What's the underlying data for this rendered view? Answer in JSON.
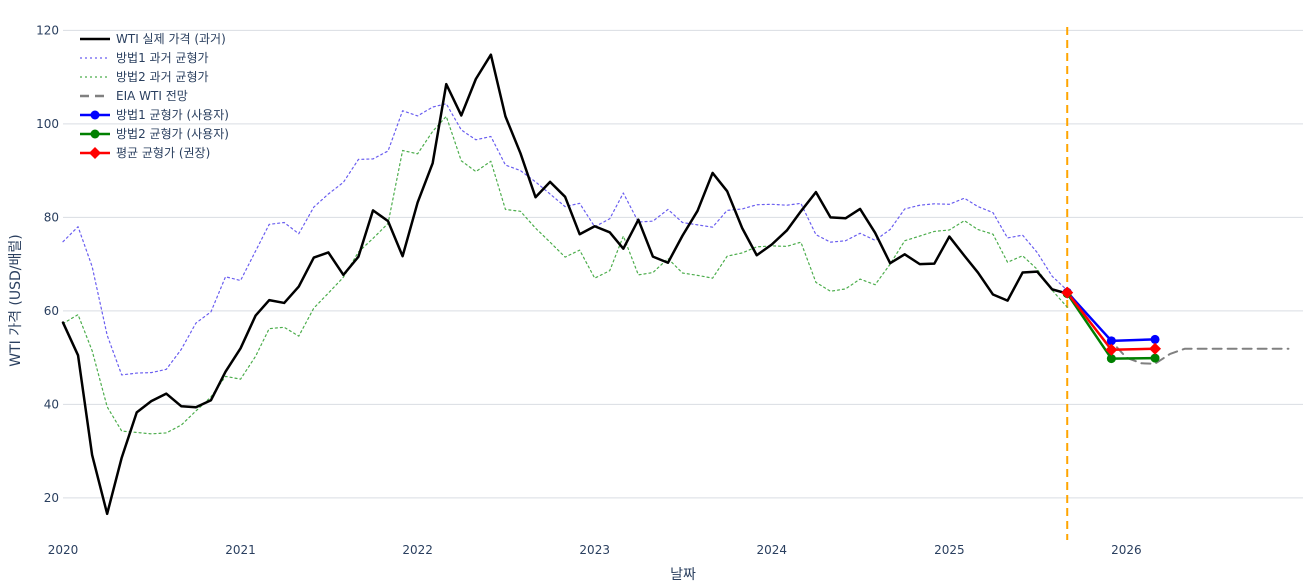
{
  "chart_data": {
    "type": "line",
    "xlabel": "날짜",
    "ylabel": "WTI 가격 (USD/배럴)",
    "xlim": [
      "2020-01-01",
      "2026-12-31"
    ],
    "ylim": [
      11,
      122
    ],
    "x_ticks": [
      "2020",
      "2021",
      "2022",
      "2023",
      "2024",
      "2025",
      "2026"
    ],
    "y_ticks": [
      20,
      40,
      60,
      80,
      100,
      120
    ],
    "grid": true,
    "legend_position": "top-left",
    "forecast_marker": {
      "date": "2025-09-01",
      "color": "#FFA500",
      "style": "dashed"
    },
    "series": [
      {
        "name": "WTI 실제 가격 (과거)",
        "color": "#000000",
        "style": "solid",
        "points": [
          [
            "2020-01-01",
            57.5
          ],
          [
            "2020-02-01",
            50.5
          ],
          [
            "2020-03-01",
            29.2
          ],
          [
            "2020-04-01",
            16.6
          ],
          [
            "2020-05-01",
            28.6
          ],
          [
            "2020-06-01",
            38.3
          ],
          [
            "2020-07-01",
            40.7
          ],
          [
            "2020-08-01",
            42.3
          ],
          [
            "2020-09-01",
            39.6
          ],
          [
            "2020-10-01",
            39.4
          ],
          [
            "2020-11-01",
            40.9
          ],
          [
            "2020-12-01",
            47.0
          ],
          [
            "2021-01-01",
            52.0
          ],
          [
            "2021-02-01",
            59.0
          ],
          [
            "2021-03-01",
            62.3
          ],
          [
            "2021-04-01",
            61.7
          ],
          [
            "2021-05-01",
            65.2
          ],
          [
            "2021-06-01",
            71.4
          ],
          [
            "2021-07-01",
            72.5
          ],
          [
            "2021-08-01",
            67.7
          ],
          [
            "2021-09-01",
            71.6
          ],
          [
            "2021-10-01",
            81.5
          ],
          [
            "2021-11-01",
            79.2
          ],
          [
            "2021-12-01",
            71.7
          ],
          [
            "2022-01-01",
            83.2
          ],
          [
            "2022-02-01",
            91.6
          ],
          [
            "2022-03-01",
            108.5
          ],
          [
            "2022-04-01",
            101.8
          ],
          [
            "2022-05-01",
            109.6
          ],
          [
            "2022-06-01",
            114.8
          ],
          [
            "2022-07-01",
            101.6
          ],
          [
            "2022-08-01",
            93.7
          ],
          [
            "2022-09-01",
            84.3
          ],
          [
            "2022-10-01",
            87.6
          ],
          [
            "2022-11-01",
            84.4
          ],
          [
            "2022-12-01",
            76.4
          ],
          [
            "2023-01-01",
            78.1
          ],
          [
            "2023-02-01",
            76.8
          ],
          [
            "2023-03-01",
            73.3
          ],
          [
            "2023-04-01",
            79.5
          ],
          [
            "2023-05-01",
            71.6
          ],
          [
            "2023-06-01",
            70.3
          ],
          [
            "2023-07-01",
            76.1
          ],
          [
            "2023-08-01",
            81.4
          ],
          [
            "2023-09-01",
            89.5
          ],
          [
            "2023-10-01",
            85.6
          ],
          [
            "2023-11-01",
            77.7
          ],
          [
            "2023-12-01",
            71.9
          ],
          [
            "2024-01-01",
            74.2
          ],
          [
            "2024-02-01",
            77.2
          ],
          [
            "2024-03-01",
            81.3
          ],
          [
            "2024-04-01",
            85.4
          ],
          [
            "2024-05-01",
            80.0
          ],
          [
            "2024-06-01",
            79.8
          ],
          [
            "2024-07-01",
            81.8
          ],
          [
            "2024-08-01",
            76.7
          ],
          [
            "2024-09-01",
            70.2
          ],
          [
            "2024-10-01",
            72.1
          ],
          [
            "2024-11-01",
            70.0
          ],
          [
            "2024-12-01",
            70.1
          ],
          [
            "2025-01-01",
            75.9
          ],
          [
            "2025-02-01",
            71.8
          ],
          [
            "2025-03-01",
            68.2
          ],
          [
            "2025-04-01",
            63.5
          ],
          [
            "2025-05-01",
            62.2
          ],
          [
            "2025-06-01",
            68.2
          ],
          [
            "2025-07-01",
            68.4
          ],
          [
            "2025-08-01",
            64.6
          ],
          [
            "2025-09-01",
            63.7
          ]
        ]
      },
      {
        "name": "방법1 과거 균형가",
        "color": "#6a5ef0",
        "style": "dotted",
        "points": [
          [
            "2020-01-01",
            74.8
          ],
          [
            "2020-02-01",
            78.0
          ],
          [
            "2020-03-01",
            69.5
          ],
          [
            "2020-04-01",
            54.8
          ],
          [
            "2020-05-01",
            46.3
          ],
          [
            "2020-06-01",
            46.7
          ],
          [
            "2020-07-01",
            46.8
          ],
          [
            "2020-08-01",
            47.5
          ],
          [
            "2020-09-01",
            51.8
          ],
          [
            "2020-10-01",
            57.4
          ],
          [
            "2020-11-01",
            59.8
          ],
          [
            "2020-12-01",
            67.3
          ],
          [
            "2021-01-01",
            66.5
          ],
          [
            "2021-02-01",
            72.8
          ],
          [
            "2021-03-01",
            78.5
          ],
          [
            "2021-04-01",
            78.9
          ],
          [
            "2021-05-01",
            76.5
          ],
          [
            "2021-06-01",
            82.2
          ],
          [
            "2021-07-01",
            85.0
          ],
          [
            "2021-08-01",
            87.5
          ],
          [
            "2021-09-01",
            92.4
          ],
          [
            "2021-10-01",
            92.5
          ],
          [
            "2021-11-01",
            94.2
          ],
          [
            "2021-12-01",
            102.8
          ],
          [
            "2022-01-01",
            101.7
          ],
          [
            "2022-02-01",
            103.6
          ],
          [
            "2022-03-01",
            104.3
          ],
          [
            "2022-04-01",
            98.7
          ],
          [
            "2022-05-01",
            96.6
          ],
          [
            "2022-06-01",
            97.3
          ],
          [
            "2022-07-01",
            91.2
          ],
          [
            "2022-08-01",
            90.0
          ],
          [
            "2022-09-01",
            87.6
          ],
          [
            "2022-10-01",
            85.0
          ],
          [
            "2022-11-01",
            82.3
          ],
          [
            "2022-12-01",
            83.0
          ],
          [
            "2023-01-01",
            78.0
          ],
          [
            "2023-02-01",
            79.7
          ],
          [
            "2023-03-01",
            85.2
          ],
          [
            "2023-04-01",
            79.0
          ],
          [
            "2023-05-01",
            79.2
          ],
          [
            "2023-06-01",
            81.7
          ],
          [
            "2023-07-01",
            78.9
          ],
          [
            "2023-08-01",
            78.4
          ],
          [
            "2023-09-01",
            77.9
          ],
          [
            "2023-10-01",
            81.5
          ],
          [
            "2023-11-01",
            81.8
          ],
          [
            "2023-12-01",
            82.7
          ],
          [
            "2024-01-01",
            82.8
          ],
          [
            "2024-02-01",
            82.6
          ],
          [
            "2024-03-01",
            83.0
          ],
          [
            "2024-04-01",
            76.3
          ],
          [
            "2024-05-01",
            74.7
          ],
          [
            "2024-06-01",
            75.0
          ],
          [
            "2024-07-01",
            76.6
          ],
          [
            "2024-08-01",
            75.1
          ],
          [
            "2024-09-01",
            77.4
          ],
          [
            "2024-10-01",
            81.8
          ],
          [
            "2024-11-01",
            82.6
          ],
          [
            "2024-12-01",
            82.9
          ],
          [
            "2025-01-01",
            82.8
          ],
          [
            "2025-02-01",
            84.1
          ],
          [
            "2025-03-01",
            82.3
          ],
          [
            "2025-04-01",
            81.0
          ],
          [
            "2025-05-01",
            75.6
          ],
          [
            "2025-06-01",
            76.2
          ],
          [
            "2025-07-01",
            72.5
          ],
          [
            "2025-08-01",
            67.4
          ],
          [
            "2025-09-01",
            64.4
          ]
        ]
      },
      {
        "name": "방법2 과거 균형가",
        "color": "#4cad4c",
        "style": "dotted",
        "points": [
          [
            "2020-01-01",
            57.3
          ],
          [
            "2020-02-01",
            59.2
          ],
          [
            "2020-03-01",
            51.5
          ],
          [
            "2020-04-01",
            39.5
          ],
          [
            "2020-05-01",
            34.3
          ],
          [
            "2020-06-01",
            34.0
          ],
          [
            "2020-07-01",
            33.7
          ],
          [
            "2020-08-01",
            33.9
          ],
          [
            "2020-09-01",
            35.6
          ],
          [
            "2020-10-01",
            38.6
          ],
          [
            "2020-11-01",
            41.6
          ],
          [
            "2020-12-01",
            46.0
          ],
          [
            "2021-01-01",
            45.4
          ],
          [
            "2021-02-01",
            50.3
          ],
          [
            "2021-03-01",
            56.2
          ],
          [
            "2021-04-01",
            56.5
          ],
          [
            "2021-05-01",
            54.6
          ],
          [
            "2021-06-01",
            60.6
          ],
          [
            "2021-07-01",
            63.8
          ],
          [
            "2021-08-01",
            67.2
          ],
          [
            "2021-09-01",
            72.6
          ],
          [
            "2021-10-01",
            75.5
          ],
          [
            "2021-11-01",
            78.7
          ],
          [
            "2021-12-01",
            94.3
          ],
          [
            "2022-01-01",
            93.6
          ],
          [
            "2022-02-01",
            98.4
          ],
          [
            "2022-03-01",
            101.6
          ],
          [
            "2022-04-01",
            92.1
          ],
          [
            "2022-05-01",
            89.8
          ],
          [
            "2022-06-01",
            92.0
          ],
          [
            "2022-07-01",
            81.7
          ],
          [
            "2022-08-01",
            81.3
          ],
          [
            "2022-09-01",
            77.7
          ],
          [
            "2022-10-01",
            74.7
          ],
          [
            "2022-11-01",
            71.5
          ],
          [
            "2022-12-01",
            73.0
          ],
          [
            "2023-01-01",
            67.0
          ],
          [
            "2023-02-01",
            68.6
          ],
          [
            "2023-03-01",
            76.0
          ],
          [
            "2023-04-01",
            67.7
          ],
          [
            "2023-05-01",
            68.2
          ],
          [
            "2023-06-01",
            71.2
          ],
          [
            "2023-07-01",
            68.1
          ],
          [
            "2023-08-01",
            67.6
          ],
          [
            "2023-09-01",
            67.0
          ],
          [
            "2023-10-01",
            71.7
          ],
          [
            "2023-11-01",
            72.4
          ],
          [
            "2023-12-01",
            73.7
          ],
          [
            "2024-01-01",
            73.9
          ],
          [
            "2024-02-01",
            73.8
          ],
          [
            "2024-03-01",
            74.7
          ],
          [
            "2024-04-01",
            66.1
          ],
          [
            "2024-05-01",
            64.2
          ],
          [
            "2024-06-01",
            64.7
          ],
          [
            "2024-07-01",
            66.8
          ],
          [
            "2024-08-01",
            65.6
          ],
          [
            "2024-09-01",
            70.0
          ],
          [
            "2024-10-01",
            75.0
          ],
          [
            "2024-11-01",
            76.0
          ],
          [
            "2024-12-01",
            77.0
          ],
          [
            "2025-01-01",
            77.3
          ],
          [
            "2025-02-01",
            79.3
          ],
          [
            "2025-03-01",
            77.4
          ],
          [
            "2025-04-01",
            76.4
          ],
          [
            "2025-05-01",
            70.4
          ],
          [
            "2025-06-01",
            71.8
          ],
          [
            "2025-07-01",
            68.9
          ],
          [
            "2025-08-01",
            64.4
          ],
          [
            "2025-09-01",
            60.8
          ]
        ]
      },
      {
        "name": "EIA WTI 전망",
        "color": "#808080",
        "style": "dashed",
        "points": [
          [
            "2025-09-01",
            64.2
          ],
          [
            "2025-10-01",
            60.5
          ],
          [
            "2025-11-01",
            57.0
          ],
          [
            "2025-12-01",
            53.5
          ],
          [
            "2026-01-01",
            50.0
          ],
          [
            "2026-02-01",
            48.8
          ],
          [
            "2026-03-01",
            48.7
          ],
          [
            "2026-04-01",
            50.8
          ],
          [
            "2026-05-01",
            51.9
          ],
          [
            "2026-06-01",
            51.9
          ],
          [
            "2026-07-01",
            51.9
          ],
          [
            "2026-08-01",
            51.9
          ],
          [
            "2026-09-01",
            51.9
          ],
          [
            "2026-10-01",
            51.9
          ],
          [
            "2026-11-01",
            51.9
          ],
          [
            "2026-12-01",
            51.9
          ]
        ]
      },
      {
        "name": "방법1 균형가 (사용자)",
        "color": "#0000ff",
        "style": "solid-marker",
        "marker": "circle",
        "points": [
          [
            "2025-09-01",
            64.0
          ],
          [
            "2025-12-01",
            53.6
          ],
          [
            "2026-03-01",
            53.9
          ]
        ]
      },
      {
        "name": "방법2 균형가 (사용자)",
        "color": "#008000",
        "style": "solid-marker",
        "marker": "circle",
        "points": [
          [
            "2025-09-01",
            63.7
          ],
          [
            "2025-12-01",
            49.8
          ],
          [
            "2026-03-01",
            49.9
          ]
        ]
      },
      {
        "name": "평균 균형가 (권장)",
        "color": "#ff0000",
        "style": "solid-marker",
        "marker": "diamond",
        "points": [
          [
            "2025-09-01",
            63.9
          ],
          [
            "2025-12-01",
            51.7
          ],
          [
            "2026-03-01",
            51.9
          ]
        ]
      }
    ]
  }
}
